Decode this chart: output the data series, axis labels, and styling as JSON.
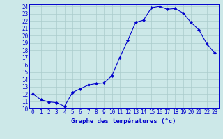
{
  "hours": [
    0,
    1,
    2,
    3,
    4,
    5,
    6,
    7,
    8,
    9,
    10,
    11,
    12,
    13,
    14,
    15,
    16,
    17,
    18,
    19,
    20,
    21,
    22,
    23
  ],
  "temps": [
    12.0,
    11.2,
    10.9,
    10.8,
    10.3,
    12.2,
    12.7,
    13.2,
    13.4,
    13.5,
    14.5,
    17.0,
    19.3,
    21.8,
    22.1,
    23.8,
    24.0,
    23.6,
    23.7,
    23.1,
    21.8,
    20.8,
    18.9,
    17.6
  ],
  "line_color": "#0000cc",
  "marker": "D",
  "marker_size": 2.0,
  "bg_color": "#cce8e8",
  "grid_color": "#aacccc",
  "xlabel": "Graphe des températures (°c)",
  "xlabel_color": "#0000cc",
  "ylim": [
    10,
    24
  ],
  "ytick_step": 1,
  "xlim_min": -0.5,
  "xlim_max": 23.5,
  "xtick_labels": [
    "0",
    "1",
    "2",
    "3",
    "4",
    "5",
    "6",
    "7",
    "8",
    "9",
    "10",
    "11",
    "12",
    "13",
    "14",
    "15",
    "16",
    "17",
    "18",
    "19",
    "20",
    "21",
    "22",
    "23"
  ],
  "xlabel_fontsize": 6.5,
  "tick_fontsize": 5.5
}
